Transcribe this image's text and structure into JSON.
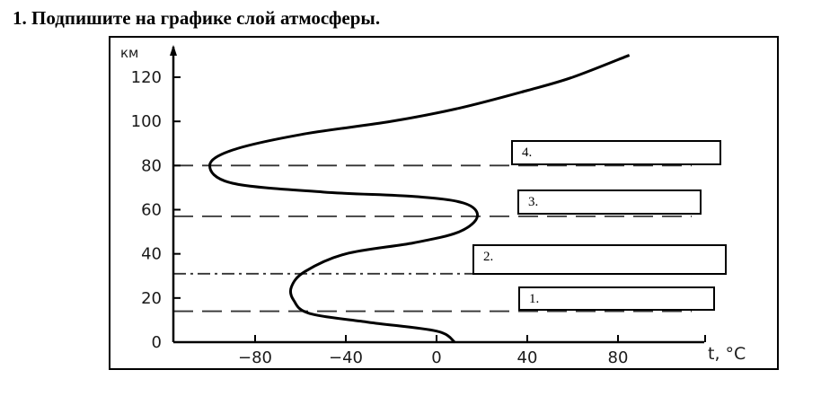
{
  "title": "1. Подпишите на графике слой атмосферы.",
  "answer_boxes": [
    {
      "label": "4."
    },
    {
      "label": "3."
    },
    {
      "label": "2."
    },
    {
      "label": "1."
    }
  ],
  "chart_data": {
    "type": "line",
    "title": "",
    "xlabel": "t, °C",
    "ylabel": "км",
    "xlim": [
      -100,
      100
    ],
    "ylim": [
      0,
      130
    ],
    "x_ticks": [
      -80,
      -40,
      0,
      40,
      80
    ],
    "x_tick_labels": [
      "−80",
      "−40",
      "0",
      "40",
      "80"
    ],
    "y_ticks": [
      0,
      20,
      40,
      60,
      80,
      100,
      120
    ],
    "y_tick_labels": [
      "0",
      "20",
      "40",
      "60",
      "80",
      "100",
      "120"
    ],
    "grid": false,
    "series": [
      {
        "x": [
          8,
          0,
          -30,
          -56,
          -63,
          -64,
          -58,
          -40,
          -10,
          10,
          18,
          12,
          -10,
          -50,
          -90,
          -100,
          -90,
          -60,
          -20,
          10,
          40,
          60,
          85
        ],
        "y": [
          0,
          5,
          9,
          13,
          19,
          25,
          32,
          40,
          45,
          50,
          57,
          63,
          66,
          68,
          72,
          80,
          87,
          94,
          100,
          106,
          114,
          120,
          130
        ]
      }
    ],
    "reference_lines": [
      {
        "y": 14,
        "style": "dashed"
      },
      {
        "y": 31,
        "style": "dash-dot"
      },
      {
        "y": 57,
        "style": "dashed"
      },
      {
        "y": 80,
        "style": "dashed"
      }
    ]
  }
}
